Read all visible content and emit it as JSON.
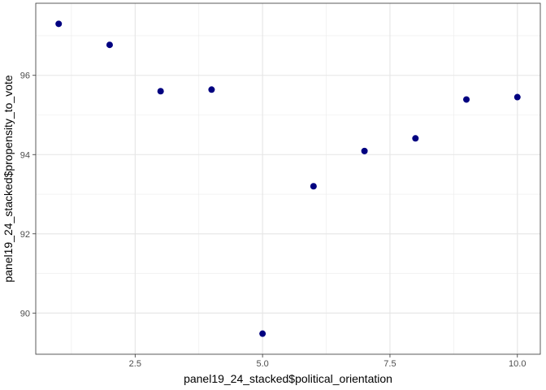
{
  "chart_data": {
    "type": "scatter",
    "title": "",
    "xlabel": "panel19_24_stacked$political_orientation",
    "ylabel": "panel19_24_stacked$propensity_to_vote",
    "xlim": [
      0.55,
      10.45
    ],
    "ylim": [
      88.96,
      97.82
    ],
    "x_ticks": [
      2.5,
      5.0,
      7.5,
      10.0
    ],
    "x_tick_labels": [
      "2.5",
      "5.0",
      "7.5",
      "10.0"
    ],
    "y_ticks": [
      90,
      92,
      94,
      96
    ],
    "y_tick_labels": [
      "90",
      "92",
      "94",
      "96"
    ],
    "grid": true,
    "point_color": "#000080",
    "points": [
      {
        "x": 1,
        "y": 97.3
      },
      {
        "x": 2,
        "y": 96.77
      },
      {
        "x": 3,
        "y": 95.6
      },
      {
        "x": 4,
        "y": 95.64
      },
      {
        "x": 5,
        "y": 89.48
      },
      {
        "x": 6,
        "y": 93.2
      },
      {
        "x": 7,
        "y": 94.09
      },
      {
        "x": 8,
        "y": 94.41
      },
      {
        "x": 9,
        "y": 95.39
      },
      {
        "x": 10,
        "y": 95.45
      }
    ]
  }
}
